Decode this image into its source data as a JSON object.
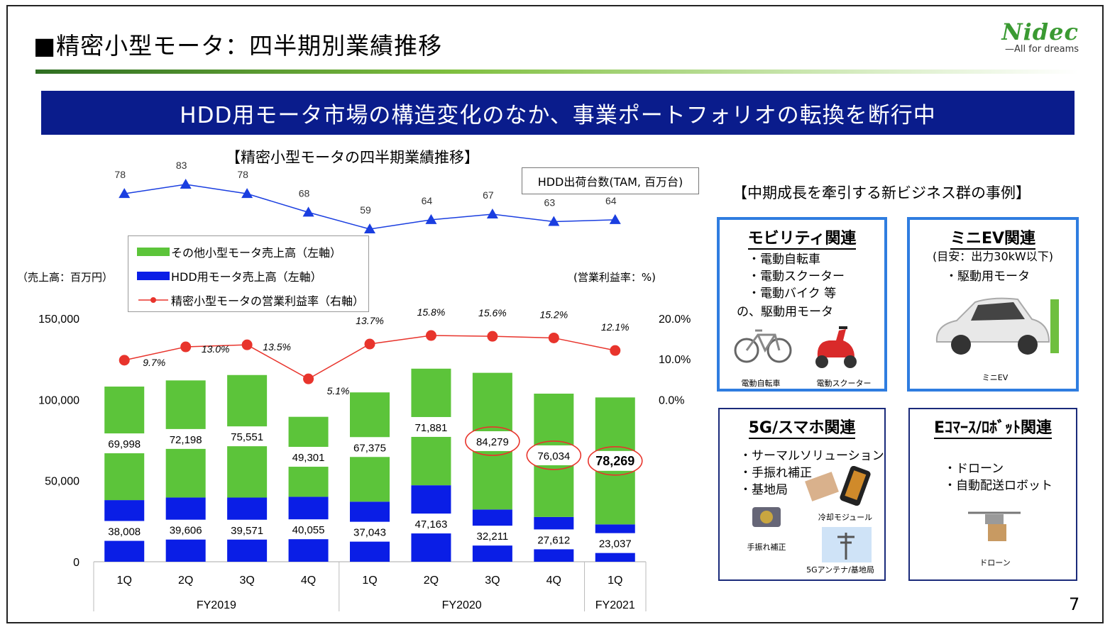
{
  "page": {
    "title": "■精密小型モータ：四半期別業績推移",
    "logo_name": "Nidec",
    "logo_tag": "All for dreams",
    "banner": "HDD用モータ市場の構造変化のなか、事業ポートフォリオの転換を断行中",
    "page_number": "7",
    "brand_color": "#0a1c8c"
  },
  "chart_data": {
    "type": "bar",
    "title": "【精密小型モータの四半期業績推移】",
    "categories": [
      "1Q",
      "2Q",
      "3Q",
      "4Q",
      "1Q",
      "2Q",
      "3Q",
      "4Q",
      "1Q"
    ],
    "groups": [
      {
        "label": "FY2019",
        "count": 4
      },
      {
        "label": "FY2020",
        "count": 4
      },
      {
        "label": "FY2021",
        "count": 1
      }
    ],
    "stacked": true,
    "series": [
      {
        "name": "HDD用モータ売上高（左軸）",
        "color": "#0a1ee6",
        "values": [
          38008,
          39606,
          39571,
          40055,
          37043,
          47163,
          32211,
          27612,
          23037
        ],
        "labels": [
          "38,008",
          "39,606",
          "39,571",
          "40,055",
          "37,043",
          "47,163",
          "32,211",
          "27,612",
          "23,037"
        ]
      },
      {
        "name": "その他小型モータ売上高（左軸）",
        "color": "#5cc43a",
        "values": [
          69998,
          72198,
          75551,
          49301,
          67375,
          71881,
          84279,
          76034,
          78269
        ],
        "labels": [
          "69,998",
          "72,198",
          "75,551",
          "49,301",
          "67,375",
          "71,881",
          "84,279",
          "76,034",
          "78,269"
        ]
      }
    ],
    "line_series": {
      "name": "精密小型モータの営業利益率（右軸）",
      "color": "#e8342c",
      "values": [
        9.7,
        13.0,
        13.5,
        5.1,
        13.7,
        15.8,
        15.6,
        15.2,
        12.1
      ],
      "labels": [
        "9.7%",
        "13.0%",
        "13.5%",
        "5.1%",
        "13.7%",
        "15.8%",
        "15.6%",
        "15.2%",
        "12.1%"
      ]
    },
    "hdd_shipments": {
      "name": "HDD出荷台数(TAM, 百万台)",
      "color": "#1a3ee0",
      "values": [
        78,
        83,
        78,
        68,
        59,
        64,
        67,
        63,
        64
      ]
    },
    "highlighted_indices": [
      6,
      7,
      8
    ],
    "left_axis": {
      "label": "（売上高：百万円）",
      "ylim": [
        0,
        150000
      ],
      "ticks": [
        "0",
        "50,000",
        "100,000",
        "150,000"
      ]
    },
    "right_axis": {
      "label": "(営業利益率：%)",
      "ticks": [
        "0.0%",
        "10.0%",
        "20.0%"
      ]
    },
    "legend_position": "top-left"
  },
  "new_business": {
    "heading": "【中期成長を牽引する新ビジネス群の事例】",
    "mobility": {
      "title": "モビリティ関連",
      "items": [
        "・電動自転車",
        "・電動スクーター",
        "・電動バイク 等",
        "の、駆動用モータ"
      ],
      "captions": [
        "電動自転車",
        "電動スクーター"
      ]
    },
    "mini_ev": {
      "title": "ミニEV関連",
      "subtitle": "(目安：出力30kW以下)",
      "items": [
        "・駆動用モータ"
      ],
      "caption": "ミニEV"
    },
    "fiveg": {
      "title": "5G/スマホ関連",
      "items": [
        "・サーマルソリューション",
        "・手振れ補正",
        "・基地局"
      ],
      "captions": [
        "冷却モジュール",
        "手振れ補正",
        "5Gアンテナ/基地局"
      ]
    },
    "ecommerce": {
      "title": "Eｺﾏｰｽ/ﾛﾎﾞｯﾄ関連",
      "items": [
        "・ドローン",
        "・自動配送ロボット"
      ],
      "caption": "ドローン"
    }
  }
}
